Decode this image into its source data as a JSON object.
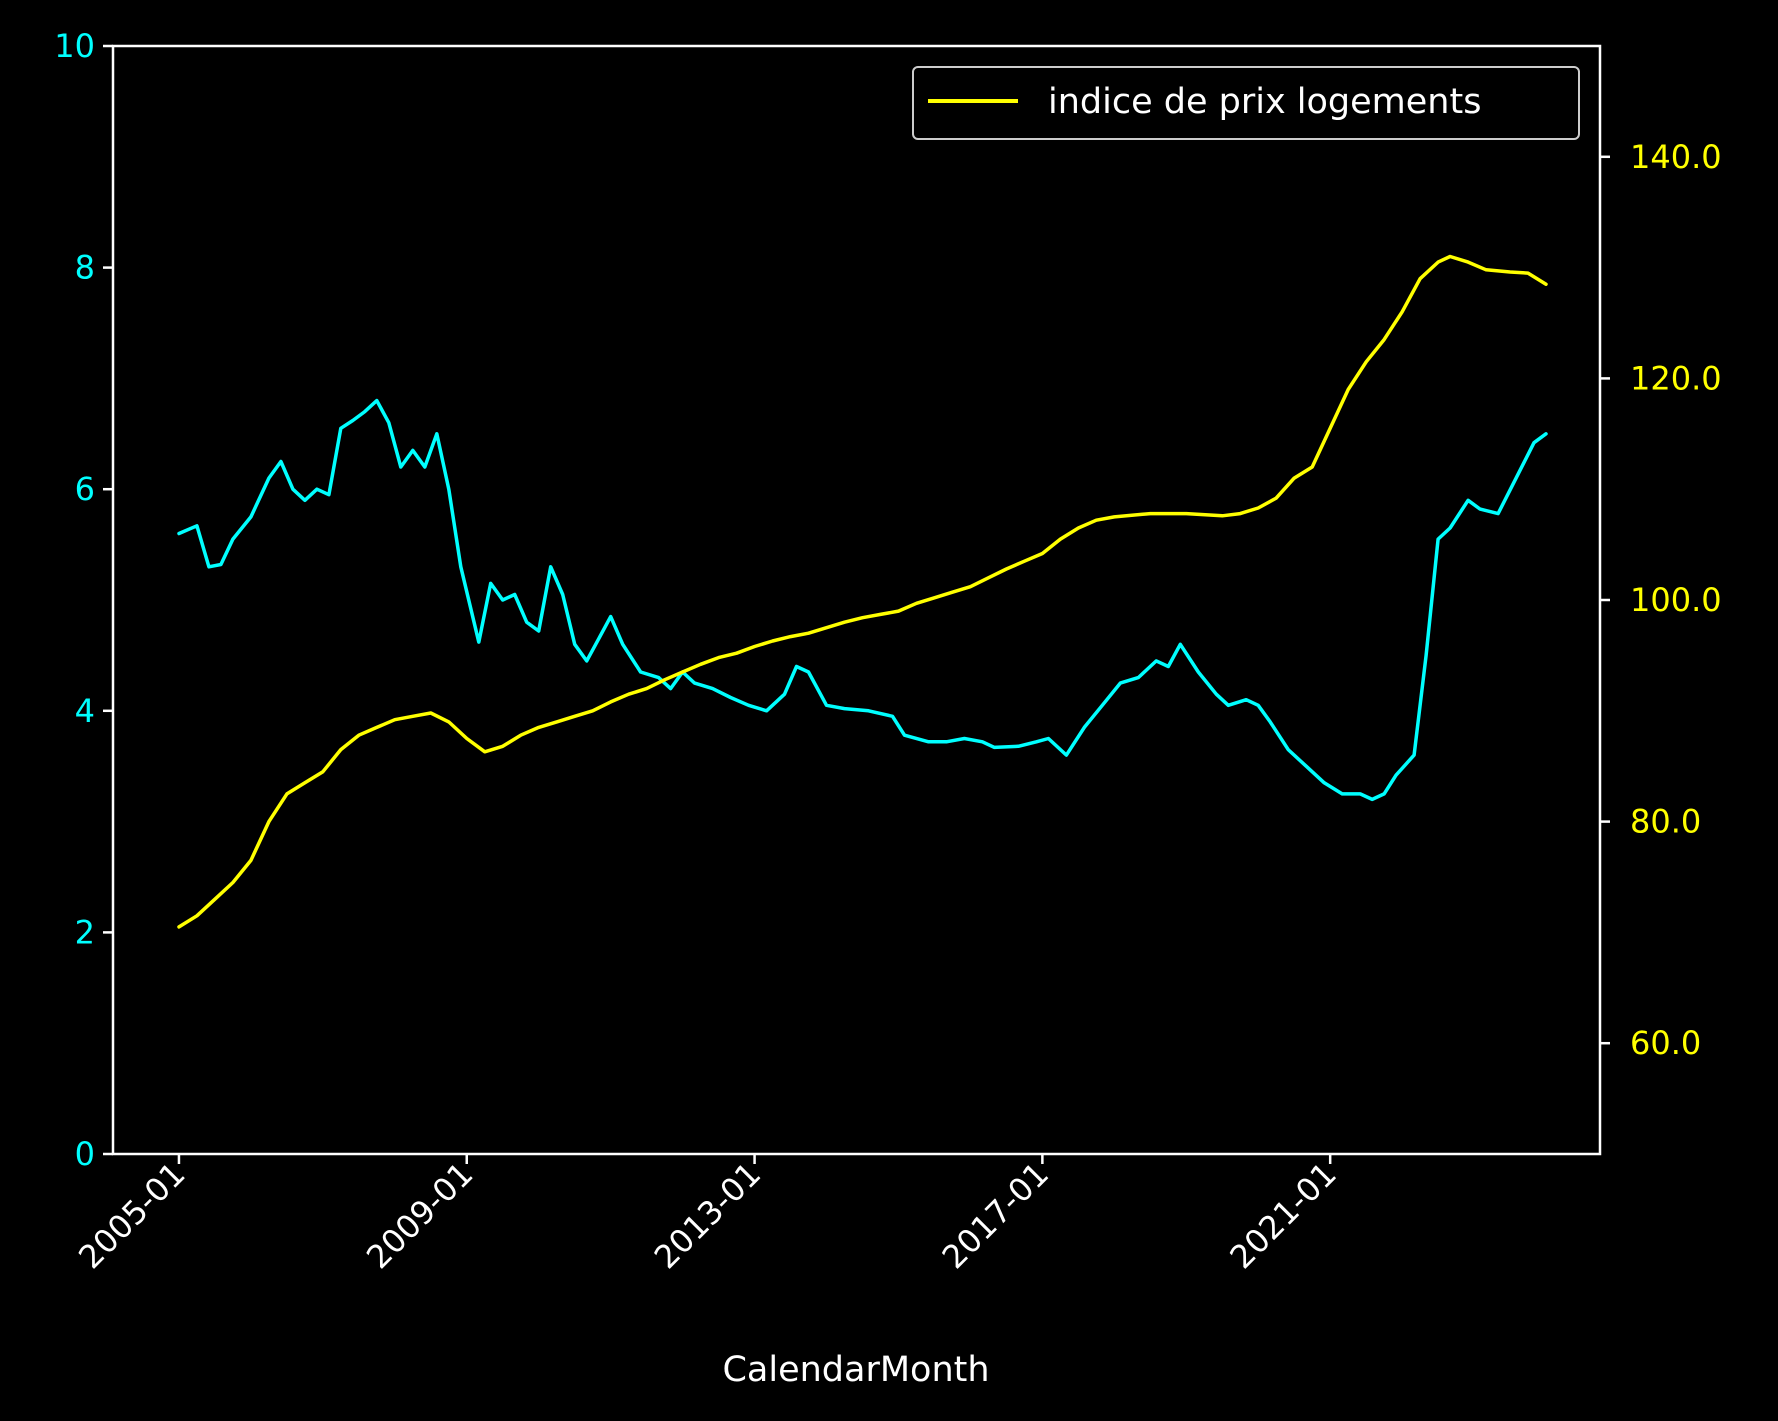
{
  "chart_data": {
    "type": "line",
    "title": "",
    "xlabel": "CalendarMonth",
    "x_ticks": [
      "2005-01",
      "2009-01",
      "2013-01",
      "2017-01",
      "2021-01"
    ],
    "x_range": [
      "2004-02",
      "2024-10"
    ],
    "y_left": {
      "label": "",
      "range": [
        0,
        10
      ],
      "ticks": [
        0,
        2,
        4,
        6,
        8,
        10
      ],
      "tick_labels": [
        "0",
        "2",
        "4",
        "6",
        "8",
        "10"
      ],
      "color": "#00ffff"
    },
    "y_right": {
      "label": "",
      "range": [
        50,
        150
      ],
      "ticks": [
        60,
        80,
        100,
        120,
        140
      ],
      "tick_labels": [
        "60.0",
        "80.0",
        "100.0",
        "120.0",
        "140.0"
      ],
      "color": "#ffff00"
    },
    "legend": {
      "placement": "top-right",
      "entries": [
        {
          "name": "indice de prix logements",
          "color": "#ffff00"
        }
      ]
    },
    "series": [
      {
        "axis": "left",
        "color": "#00ffff",
        "points": [
          [
            "2005-01",
            5.6
          ],
          [
            "2005-04",
            5.67
          ],
          [
            "2005-06",
            5.3
          ],
          [
            "2005-08",
            5.32
          ],
          [
            "2005-10",
            5.55
          ],
          [
            "2006-01",
            5.75
          ],
          [
            "2006-04",
            6.1
          ],
          [
            "2006-06",
            6.25
          ],
          [
            "2006-08",
            6.0
          ],
          [
            "2006-10",
            5.9
          ],
          [
            "2006-12",
            6.0
          ],
          [
            "2007-02",
            5.95
          ],
          [
            "2007-04",
            6.55
          ],
          [
            "2007-06",
            6.62
          ],
          [
            "2007-08",
            6.7
          ],
          [
            "2007-10",
            6.8
          ],
          [
            "2007-12",
            6.6
          ],
          [
            "2008-02",
            6.2
          ],
          [
            "2008-04",
            6.35
          ],
          [
            "2008-06",
            6.2
          ],
          [
            "2008-08",
            6.5
          ],
          [
            "2008-10",
            6.0
          ],
          [
            "2008-12",
            5.3
          ],
          [
            "2009-03",
            4.62
          ],
          [
            "2009-05",
            5.15
          ],
          [
            "2009-07",
            5.0
          ],
          [
            "2009-09",
            5.05
          ],
          [
            "2009-11",
            4.8
          ],
          [
            "2010-01",
            4.72
          ],
          [
            "2010-03",
            5.3
          ],
          [
            "2010-05",
            5.05
          ],
          [
            "2010-07",
            4.6
          ],
          [
            "2010-09",
            4.45
          ],
          [
            "2010-11",
            4.65
          ],
          [
            "2011-01",
            4.85
          ],
          [
            "2011-03",
            4.6
          ],
          [
            "2011-06",
            4.35
          ],
          [
            "2011-09",
            4.3
          ],
          [
            "2011-11",
            4.2
          ],
          [
            "2012-01",
            4.35
          ],
          [
            "2012-03",
            4.25
          ],
          [
            "2012-06",
            4.2
          ],
          [
            "2012-09",
            4.12
          ],
          [
            "2012-12",
            4.05
          ],
          [
            "2013-03",
            4.0
          ],
          [
            "2013-06",
            4.15
          ],
          [
            "2013-08",
            4.4
          ],
          [
            "2013-10",
            4.35
          ],
          [
            "2014-01",
            4.05
          ],
          [
            "2014-04",
            4.02
          ],
          [
            "2014-08",
            4.0
          ],
          [
            "2014-12",
            3.95
          ],
          [
            "2015-02",
            3.78
          ],
          [
            "2015-06",
            3.72
          ],
          [
            "2015-09",
            3.72
          ],
          [
            "2015-12",
            3.75
          ],
          [
            "2016-03",
            3.72
          ],
          [
            "2016-05",
            3.67
          ],
          [
            "2016-09",
            3.68
          ],
          [
            "2016-12",
            3.72
          ],
          [
            "2017-02",
            3.75
          ],
          [
            "2017-05",
            3.6
          ],
          [
            "2017-08",
            3.85
          ],
          [
            "2017-11",
            4.05
          ],
          [
            "2018-02",
            4.25
          ],
          [
            "2018-05",
            4.3
          ],
          [
            "2018-08",
            4.45
          ],
          [
            "2018-10",
            4.4
          ],
          [
            "2018-12",
            4.6
          ],
          [
            "2019-03",
            4.35
          ],
          [
            "2019-06",
            4.15
          ],
          [
            "2019-08",
            4.05
          ],
          [
            "2019-11",
            4.1
          ],
          [
            "2020-01",
            4.05
          ],
          [
            "2020-03",
            3.9
          ],
          [
            "2020-06",
            3.65
          ],
          [
            "2020-09",
            3.5
          ],
          [
            "2020-12",
            3.35
          ],
          [
            "2021-03",
            3.25
          ],
          [
            "2021-06",
            3.25
          ],
          [
            "2021-08",
            3.2
          ],
          [
            "2021-10",
            3.25
          ],
          [
            "2021-12",
            3.42
          ],
          [
            "2022-03",
            3.6
          ],
          [
            "2022-05",
            4.5
          ],
          [
            "2022-07",
            5.55
          ],
          [
            "2022-09",
            5.65
          ],
          [
            "2022-12",
            5.9
          ],
          [
            "2023-02",
            5.82
          ],
          [
            "2023-05",
            5.78
          ],
          [
            "2023-08",
            6.1
          ],
          [
            "2023-11",
            6.42
          ],
          [
            "2024-01",
            6.5
          ]
        ]
      },
      {
        "axis": "right",
        "name": "indice de prix logements",
        "color": "#ffff00",
        "points": [
          [
            "2005-01",
            70.5
          ],
          [
            "2005-04",
            71.5
          ],
          [
            "2005-07",
            73.0
          ],
          [
            "2005-10",
            74.5
          ],
          [
            "2006-01",
            76.5
          ],
          [
            "2006-04",
            80.0
          ],
          [
            "2006-07",
            82.5
          ],
          [
            "2006-10",
            83.5
          ],
          [
            "2007-01",
            84.5
          ],
          [
            "2007-04",
            86.5
          ],
          [
            "2007-07",
            87.8
          ],
          [
            "2007-10",
            88.5
          ],
          [
            "2008-01",
            89.2
          ],
          [
            "2008-04",
            89.5
          ],
          [
            "2008-07",
            89.8
          ],
          [
            "2008-10",
            89.0
          ],
          [
            "2009-01",
            87.5
          ],
          [
            "2009-04",
            86.3
          ],
          [
            "2009-07",
            86.8
          ],
          [
            "2009-10",
            87.8
          ],
          [
            "2010-01",
            88.5
          ],
          [
            "2010-04",
            89.0
          ],
          [
            "2010-07",
            89.5
          ],
          [
            "2010-10",
            90.0
          ],
          [
            "2011-01",
            90.8
          ],
          [
            "2011-04",
            91.5
          ],
          [
            "2011-07",
            92.0
          ],
          [
            "2011-10",
            92.8
          ],
          [
            "2012-01",
            93.5
          ],
          [
            "2012-04",
            94.2
          ],
          [
            "2012-07",
            94.8
          ],
          [
            "2012-10",
            95.2
          ],
          [
            "2013-01",
            95.8
          ],
          [
            "2013-04",
            96.3
          ],
          [
            "2013-07",
            96.7
          ],
          [
            "2013-10",
            97.0
          ],
          [
            "2014-01",
            97.5
          ],
          [
            "2014-04",
            98.0
          ],
          [
            "2014-07",
            98.4
          ],
          [
            "2014-10",
            98.7
          ],
          [
            "2015-01",
            99.0
          ],
          [
            "2015-04",
            99.7
          ],
          [
            "2015-07",
            100.2
          ],
          [
            "2015-10",
            100.7
          ],
          [
            "2016-01",
            101.2
          ],
          [
            "2016-04",
            102.0
          ],
          [
            "2016-07",
            102.8
          ],
          [
            "2016-10",
            103.5
          ],
          [
            "2017-01",
            104.2
          ],
          [
            "2017-04",
            105.5
          ],
          [
            "2017-07",
            106.5
          ],
          [
            "2017-10",
            107.2
          ],
          [
            "2018-01",
            107.5
          ],
          [
            "2018-07",
            107.8
          ],
          [
            "2019-01",
            107.8
          ],
          [
            "2019-07",
            107.6
          ],
          [
            "2019-10",
            107.8
          ],
          [
            "2020-01",
            108.3
          ],
          [
            "2020-04",
            109.2
          ],
          [
            "2020-07",
            111.0
          ],
          [
            "2020-10",
            112.0
          ],
          [
            "2021-01",
            115.5
          ],
          [
            "2021-04",
            119.0
          ],
          [
            "2021-07",
            121.5
          ],
          [
            "2021-10",
            123.5
          ],
          [
            "2022-01",
            126.0
          ],
          [
            "2022-04",
            129.0
          ],
          [
            "2022-07",
            130.5
          ],
          [
            "2022-09",
            131.0
          ],
          [
            "2022-12",
            130.5
          ],
          [
            "2023-03",
            129.8
          ],
          [
            "2023-07",
            129.6
          ],
          [
            "2023-10",
            129.5
          ],
          [
            "2024-01",
            128.5
          ]
        ]
      }
    ]
  }
}
